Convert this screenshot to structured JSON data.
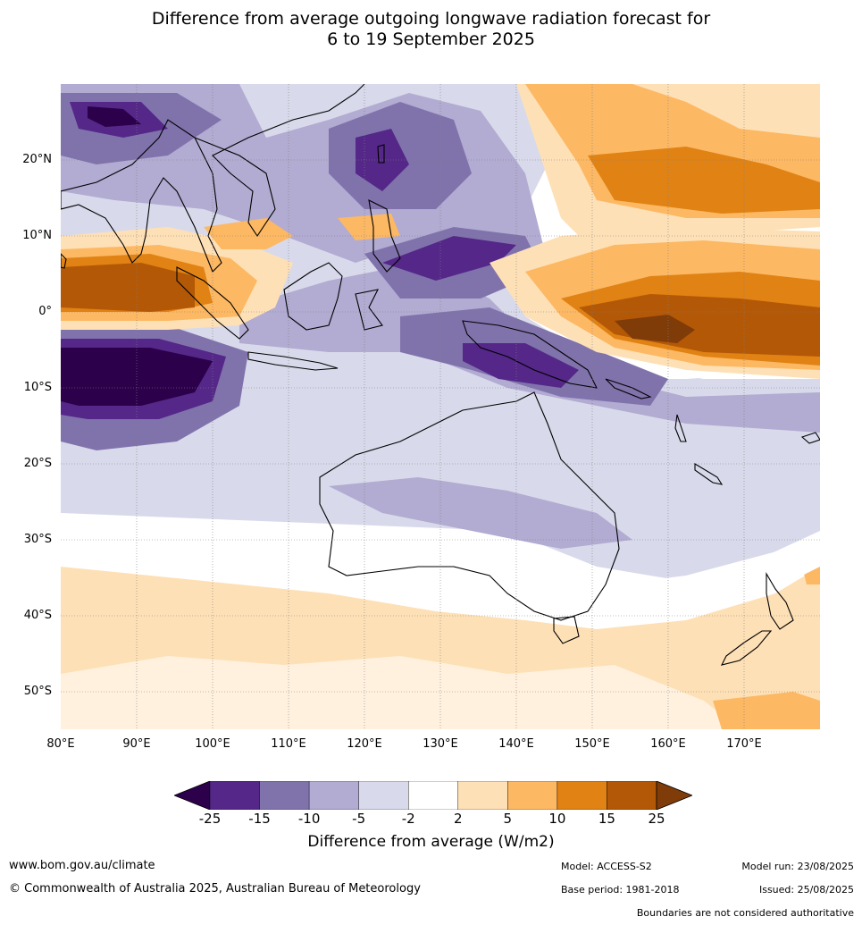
{
  "title_line1": "Difference from average outgoing longwave radiation forecast for",
  "title_line2": "6 to 19 September 2025",
  "lat_labels": [
    "20°N",
    "10°N",
    "0°",
    "10°S",
    "20°S",
    "30°S",
    "40°S",
    "50°S"
  ],
  "lon_labels": [
    "80°E",
    "90°E",
    "100°E",
    "110°E",
    "120°E",
    "130°E",
    "140°E",
    "150°E",
    "160°E",
    "170°E"
  ],
  "map_extent": {
    "lon_min": 80,
    "lon_max": 180,
    "lat_min": -55,
    "lat_max": 30
  },
  "colorbar": {
    "ticks": [
      "-25",
      "-15",
      "-10",
      "-5",
      "-2",
      "2",
      "5",
      "10",
      "15",
      "25"
    ],
    "colors": [
      "#2d004b",
      "#542788",
      "#8073ac",
      "#b2abd2",
      "#d8daeb",
      "#ffffff",
      "#fee0b6",
      "#fdb863",
      "#e08214",
      "#b35806",
      "#7f3b08"
    ],
    "label": "Difference from average (W/m2)"
  },
  "footer": {
    "website": "www.bom.gov.au/climate",
    "copyright": "© Commonwealth of Australia 2025, Australian Bureau of Meteorology",
    "model": "Model: ACCESS-S2",
    "base_period": "Base period: 1981-2018",
    "model_run": "Model run: 23/08/2025",
    "issued": "Issued: 25/08/2025",
    "disclaimer": "Boundaries are not considered authoritative"
  }
}
